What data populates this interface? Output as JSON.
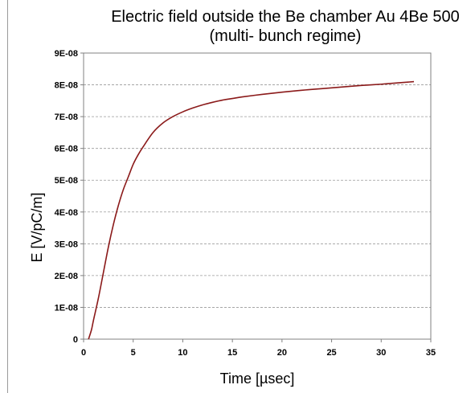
{
  "chart_data": {
    "type": "line",
    "title": [
      "Electric field outside the Be chamber Au 4Be 500",
      "(multi- bunch regime)"
    ],
    "xlabel": "Time [µsec]",
    "ylabel": "E [V/pC/m]",
    "xlim": [
      0,
      35
    ],
    "ylim": [
      0,
      9e-08
    ],
    "x_ticks": [
      0,
      5,
      10,
      15,
      20,
      25,
      30,
      35
    ],
    "x_tick_labels": [
      "0",
      "5",
      "10",
      "15",
      "20",
      "25",
      "30",
      "35"
    ],
    "y_ticks": [
      0,
      1e-08,
      2e-08,
      3e-08,
      4e-08,
      5e-08,
      6e-08,
      7e-08,
      8e-08,
      9e-08
    ],
    "y_tick_labels": [
      "0",
      "1E-08",
      "2E-08",
      "3E-08",
      "4E-08",
      "5E-08",
      "6E-08",
      "7E-08",
      "8E-08",
      "9E-08"
    ],
    "grid": {
      "horizontal": true,
      "vertical": false,
      "style": "dashed"
    },
    "line_color": "#8b1a1a",
    "series": [
      {
        "x": [
          0.5,
          0.8,
          1,
          1.5,
          2,
          2.5,
          3,
          3.5,
          4,
          4.5,
          5,
          5.5,
          6,
          7,
          8,
          9,
          10,
          11,
          12,
          13,
          14,
          15,
          16,
          18,
          20,
          22,
          24,
          26,
          28,
          30,
          32,
          33.3
        ],
        "y": [
          0,
          3e-09,
          6e-09,
          1.3e-08,
          2.1e-08,
          2.9e-08,
          3.6e-08,
          4.2e-08,
          4.7e-08,
          5.1e-08,
          5.5e-08,
          5.8e-08,
          6.05e-08,
          6.5e-08,
          6.8e-08,
          7e-08,
          7.15e-08,
          7.27e-08,
          7.37e-08,
          7.45e-08,
          7.52e-08,
          7.57e-08,
          7.62e-08,
          7.7e-08,
          7.77e-08,
          7.83e-08,
          7.88e-08,
          7.93e-08,
          7.98e-08,
          8.02e-08,
          8.07e-08,
          8.1e-08
        ]
      }
    ]
  }
}
